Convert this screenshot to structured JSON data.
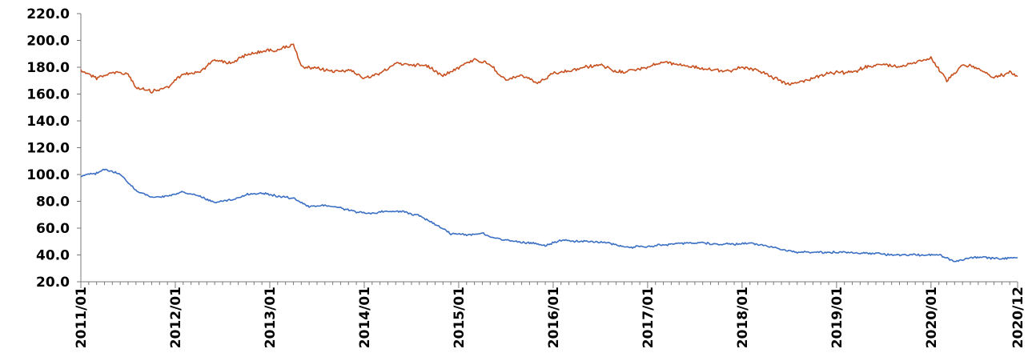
{
  "chart_data": {
    "type": "line",
    "title": "",
    "xlabel": "",
    "ylabel": "",
    "ylim": [
      20.0,
      220.0
    ],
    "yticks": [
      "20.0",
      "40.0",
      "60.0",
      "80.0",
      "100.0",
      "120.0",
      "140.0",
      "160.0",
      "180.0",
      "200.0",
      "220.0"
    ],
    "xlim": [
      "2011/01",
      "2020/12"
    ],
    "xticks": [
      "2011/01",
      "2012/01",
      "2013/01",
      "2014/01",
      "2015/01",
      "2016/01",
      "2017/01",
      "2018/01",
      "2019/01",
      "2020/01",
      "2020/12"
    ],
    "grid": false,
    "legend": "none",
    "series": [
      {
        "color": "#c8501e",
        "x": [
          "2011/01",
          "2011/03",
          "2011/05",
          "2011/07",
          "2011/08",
          "2011/10",
          "2011/12",
          "2012/02",
          "2012/04",
          "2012/06",
          "2012/08",
          "2012/10",
          "2012/12",
          "2013/02",
          "2013/04",
          "2013/05",
          "2013/07",
          "2013/09",
          "2013/11",
          "2014/01",
          "2014/03",
          "2014/05",
          "2014/07",
          "2014/09",
          "2014/11",
          "2015/01",
          "2015/03",
          "2015/05",
          "2015/07",
          "2015/09",
          "2015/11",
          "2016/01",
          "2016/03",
          "2016/05",
          "2016/07",
          "2016/09",
          "2016/11",
          "2017/01",
          "2017/03",
          "2017/05",
          "2017/07",
          "2017/09",
          "2017/11",
          "2018/01",
          "2018/03",
          "2018/05",
          "2018/07",
          "2018/09",
          "2018/11",
          "2019/01",
          "2019/03",
          "2019/05",
          "2019/07",
          "2019/09",
          "2019/11",
          "2020/01",
          "2020/03",
          "2020/05",
          "2020/07",
          "2020/09",
          "2020/11",
          "2020/12"
        ],
        "values": [
          178,
          172,
          176,
          175,
          165,
          162,
          165,
          175,
          176,
          186,
          183,
          189,
          192,
          193,
          197,
          180,
          179,
          177,
          178,
          172,
          175,
          183,
          182,
          181,
          174,
          180,
          186,
          182,
          170,
          174,
          168,
          175,
          177,
          180,
          182,
          176,
          178,
          180,
          184,
          182,
          180,
          178,
          177,
          180,
          178,
          172,
          167,
          170,
          174,
          176,
          176,
          181,
          182,
          180,
          184,
          187,
          170,
          182,
          179,
          172,
          176,
          173
        ]
      },
      {
        "color": "#3a6fc4",
        "x": [
          "2011/01",
          "2011/03",
          "2011/04",
          "2011/06",
          "2011/08",
          "2011/10",
          "2011/12",
          "2012/02",
          "2012/04",
          "2012/06",
          "2012/08",
          "2012/10",
          "2012/12",
          "2013/02",
          "2013/04",
          "2013/06",
          "2013/08",
          "2013/10",
          "2013/12",
          "2014/02",
          "2014/04",
          "2014/06",
          "2014/08",
          "2014/10",
          "2014/12",
          "2015/02",
          "2015/04",
          "2015/06",
          "2015/08",
          "2015/10",
          "2015/12",
          "2016/02",
          "2016/04",
          "2016/06",
          "2016/08",
          "2016/10",
          "2016/12",
          "2017/02",
          "2017/04",
          "2017/06",
          "2017/08",
          "2017/10",
          "2017/12",
          "2018/02",
          "2018/04",
          "2018/06",
          "2018/08",
          "2018/10",
          "2018/12",
          "2019/02",
          "2019/04",
          "2019/06",
          "2019/08",
          "2019/10",
          "2019/12",
          "2020/02",
          "2020/04",
          "2020/06",
          "2020/08",
          "2020/10",
          "2020/12"
        ],
        "values": [
          99,
          101,
          104,
          100,
          88,
          83,
          84,
          87,
          84,
          79,
          81,
          85,
          86,
          84,
          82,
          76,
          77,
          75,
          72,
          71,
          73,
          72,
          69,
          63,
          56,
          55,
          56,
          52,
          50,
          49,
          47,
          51,
          50,
          50,
          49,
          46,
          46,
          47,
          48,
          49,
          49,
          48,
          48,
          49,
          47,
          44,
          42,
          42,
          42,
          42,
          41,
          41,
          40,
          40,
          40,
          40,
          35,
          38,
          38,
          37,
          38
        ]
      }
    ]
  }
}
